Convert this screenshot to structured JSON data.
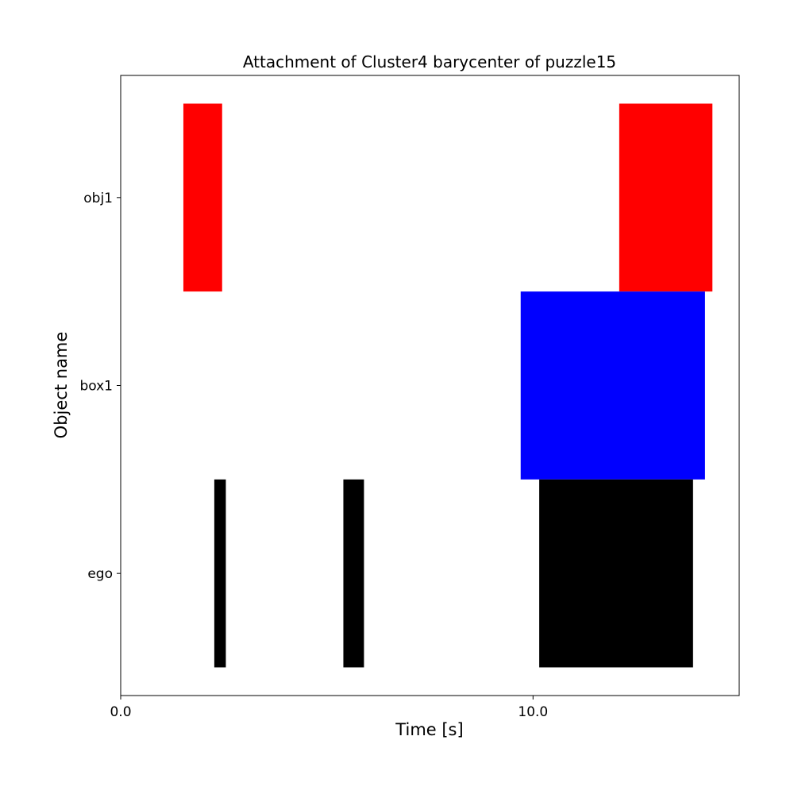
{
  "chart_data": {
    "type": "bar",
    "title": "Attachment of Cluster4 barycenter of puzzle15",
    "xlabel": "Time [s]",
    "ylabel": "Object name",
    "xlim": [
      0,
      15
    ],
    "x_ticks": [
      {
        "value": 0,
        "label": "0.0"
      },
      {
        "value": 10,
        "label": "10.0"
      }
    ],
    "categories": [
      "ego",
      "box1",
      "obj1"
    ],
    "category_range": [
      -0.65,
      2.65
    ],
    "bar_height": 1.0,
    "grid": false,
    "series": [
      {
        "category": "obj1",
        "color": "#ff0000",
        "intervals": [
          [
            1.52,
            2.46
          ],
          [
            12.09,
            14.35
          ]
        ]
      },
      {
        "category": "box1",
        "color": "#0000ff",
        "intervals": [
          [
            9.7,
            14.17
          ]
        ]
      },
      {
        "category": "ego",
        "color": "#000000",
        "intervals": [
          [
            2.27,
            2.55
          ],
          [
            5.4,
            5.9
          ],
          [
            10.15,
            13.88
          ]
        ]
      }
    ]
  }
}
